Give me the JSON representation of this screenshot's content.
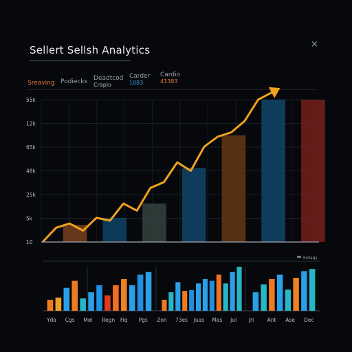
{
  "header": {
    "title": "Sellert Sellsh Analytics",
    "close_glyph": "×"
  },
  "tabs": [
    {
      "label": "Sreaving",
      "active": true
    },
    {
      "label": "Podiecks"
    },
    {
      "label": "Deadtcod",
      "sub": "Craplo"
    },
    {
      "label": "Carder",
      "sub": "1083"
    },
    {
      "label": "Cardio",
      "sub": "41383"
    }
  ],
  "chart_data": [
    {
      "type": "bar",
      "y_tick_labels": [
        "55k",
        "12k",
        "65k",
        "48k",
        "25k",
        "5k",
        "10"
      ],
      "ylim": [
        0,
        100
      ],
      "bars": [
        {
          "value": 12,
          "color": "#6b3a1c"
        },
        {
          "value": 17,
          "color": "#0d3d5c"
        },
        {
          "value": 27,
          "color": "#2f3c3a"
        },
        {
          "value": 52,
          "color": "#0f3f5f"
        },
        {
          "value": 75,
          "color": "#5c3214"
        },
        {
          "value": 100,
          "color": "#0f3f60"
        },
        {
          "value": 100,
          "color": "#6a1d1a"
        }
      ],
      "trend_line": {
        "color": "#f0a21e",
        "values": [
          0,
          10,
          13,
          8,
          17,
          15,
          27,
          22,
          38,
          42,
          56,
          50,
          67,
          74,
          77,
          85,
          100,
          105
        ]
      }
    },
    {
      "type": "bar",
      "legend": "Erdaqs",
      "x_tick_labels": [
        "Yda",
        "Cgs",
        "Mel",
        "Regn",
        "Fiq",
        "Pgs",
        "Zon",
        "73es",
        "Juas",
        "Mas",
        "Jul",
        "Jrl",
        "Ant",
        "Ase",
        "Dec"
      ],
      "ylim": [
        0,
        100
      ],
      "groups": [
        [
          {
            "value": 25,
            "color": "#f07a20"
          },
          {
            "value": 30,
            "color": "#f0a020"
          },
          {
            "value": 52,
            "color": "#2aa0e8"
          },
          {
            "value": 68,
            "color": "#f07a20"
          },
          {
            "value": 28,
            "color": "#25b6c8"
          },
          {
            "value": 42,
            "color": "#2aa0e8"
          },
          {
            "value": 58,
            "color": "#1f8fe0"
          },
          {
            "value": 35,
            "color": "#e23a1a"
          },
          {
            "value": 58,
            "color": "#f07020"
          },
          {
            "value": 72,
            "color": "#f08020"
          },
          {
            "value": 58,
            "color": "#2aa0e8"
          },
          {
            "value": 82,
            "color": "#1f8fe0"
          },
          {
            "value": 88,
            "color": "#2aa0e8"
          }
        ],
        [
          {
            "value": 25,
            "color": "#f07a20"
          },
          {
            "value": 42,
            "color": "#25b6c8"
          },
          {
            "value": 65,
            "color": "#2aa0e8"
          },
          {
            "value": 45,
            "color": "#f07a20"
          },
          {
            "value": 47,
            "color": "#1f8fe0"
          },
          {
            "value": 62,
            "color": "#2aa0e8"
          },
          {
            "value": 72,
            "color": "#2aa0e8"
          },
          {
            "value": 68,
            "color": "#1f8fe0"
          },
          {
            "value": 82,
            "color": "#f07020"
          },
          {
            "value": 62,
            "color": "#25b6c8"
          },
          {
            "value": 88,
            "color": "#2aa0e8"
          },
          {
            "value": 100,
            "color": "#25b6c8"
          }
        ],
        [
          {
            "value": 42,
            "color": "#2aa0e8"
          },
          {
            "value": 60,
            "color": "#25b6c8"
          },
          {
            "value": 72,
            "color": "#f07a20"
          },
          {
            "value": 82,
            "color": "#2aa0e8"
          },
          {
            "value": 48,
            "color": "#25b6c8"
          },
          {
            "value": 75,
            "color": "#f08020"
          },
          {
            "value": 90,
            "color": "#2aa0e8"
          },
          {
            "value": 95,
            "color": "#25b6c8"
          }
        ]
      ]
    }
  ]
}
